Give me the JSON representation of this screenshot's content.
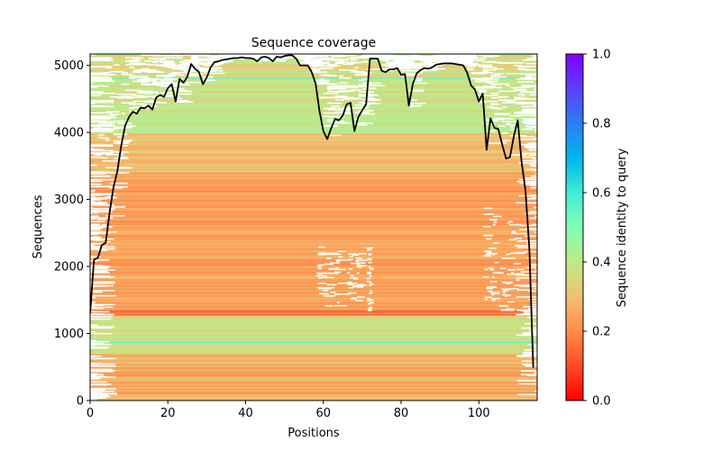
{
  "chart_data": {
    "type": "heatmap",
    "title": "Sequence coverage",
    "xlabel": "Positions",
    "ylabel": "Sequences",
    "xlim": [
      0,
      115
    ],
    "ylim": [
      0,
      5170
    ],
    "xticks": [
      0,
      20,
      40,
      60,
      80,
      100
    ],
    "yticks": [
      0,
      1000,
      2000,
      3000,
      4000,
      5000
    ],
    "colorbar": {
      "label": "Sequence identity to query",
      "range": [
        0.0,
        1.0
      ],
      "ticks": [
        "0.0",
        "0.2",
        "0.4",
        "0.6",
        "0.8",
        "1.0"
      ],
      "colormap": "rainbow_r"
    },
    "heatmap_bands": [
      {
        "from": 0,
        "to": 700,
        "identity": 0.26
      },
      {
        "from": 700,
        "to": 1280,
        "identity": 0.38
      },
      {
        "from": 1280,
        "to": 1350,
        "identity": 0.18
      },
      {
        "from": 1350,
        "to": 3400,
        "identity": 0.24
      },
      {
        "from": 3400,
        "to": 4000,
        "identity": 0.3
      },
      {
        "from": 4000,
        "to": 5170,
        "identity": 0.38
      }
    ],
    "series": [
      {
        "name": "coverage",
        "color": "#000000",
        "x": [
          0,
          1,
          2,
          3,
          4,
          5,
          6,
          7,
          8,
          9,
          10,
          11,
          12,
          13,
          14,
          15,
          16,
          17,
          18,
          19,
          20,
          21,
          22,
          23,
          24,
          25,
          26,
          27,
          28,
          29,
          30,
          31,
          32,
          33,
          34,
          35,
          36,
          37,
          38,
          39,
          40,
          41,
          42,
          43,
          44,
          45,
          46,
          47,
          48,
          49,
          50,
          51,
          52,
          53,
          54,
          55,
          56,
          57,
          58,
          59,
          60,
          61,
          62,
          63,
          64,
          65,
          66,
          67,
          68,
          69,
          70,
          71,
          72,
          73,
          74,
          75,
          76,
          77,
          78,
          79,
          80,
          81,
          82,
          83,
          84,
          85,
          86,
          87,
          88,
          89,
          90,
          91,
          92,
          93,
          94,
          95,
          96,
          97,
          98,
          99,
          100,
          101,
          102,
          103,
          104,
          105,
          106,
          107,
          108,
          109,
          110,
          111,
          112,
          113,
          114
        ],
        "y": [
          1300,
          2100,
          2130,
          2320,
          2350,
          2800,
          3180,
          3420,
          3800,
          4100,
          4230,
          4310,
          4280,
          4370,
          4360,
          4400,
          4340,
          4520,
          4560,
          4530,
          4660,
          4720,
          4460,
          4800,
          4740,
          4830,
          5020,
          4950,
          4900,
          4720,
          4820,
          4970,
          5050,
          5060,
          5080,
          5090,
          5100,
          5110,
          5110,
          5120,
          5110,
          5110,
          5100,
          5060,
          5120,
          5130,
          5110,
          5060,
          5130,
          5120,
          5140,
          5150,
          5150,
          5100,
          5000,
          5000,
          5000,
          4900,
          4730,
          4320,
          4020,
          3900,
          4060,
          4200,
          4180,
          4250,
          4420,
          4440,
          4020,
          4230,
          4330,
          4420,
          5100,
          5100,
          5100,
          4920,
          4900,
          4940,
          4940,
          4960,
          4860,
          4870,
          4400,
          4720,
          4880,
          4930,
          4960,
          4950,
          4970,
          5010,
          5020,
          5030,
          5030,
          5030,
          5020,
          5010,
          5000,
          4890,
          4700,
          4640,
          4460,
          4580,
          3740,
          4210,
          4070,
          4050,
          3820,
          3610,
          3630,
          3940,
          4180,
          3560,
          3130,
          2260,
          490
        ]
      }
    ]
  }
}
